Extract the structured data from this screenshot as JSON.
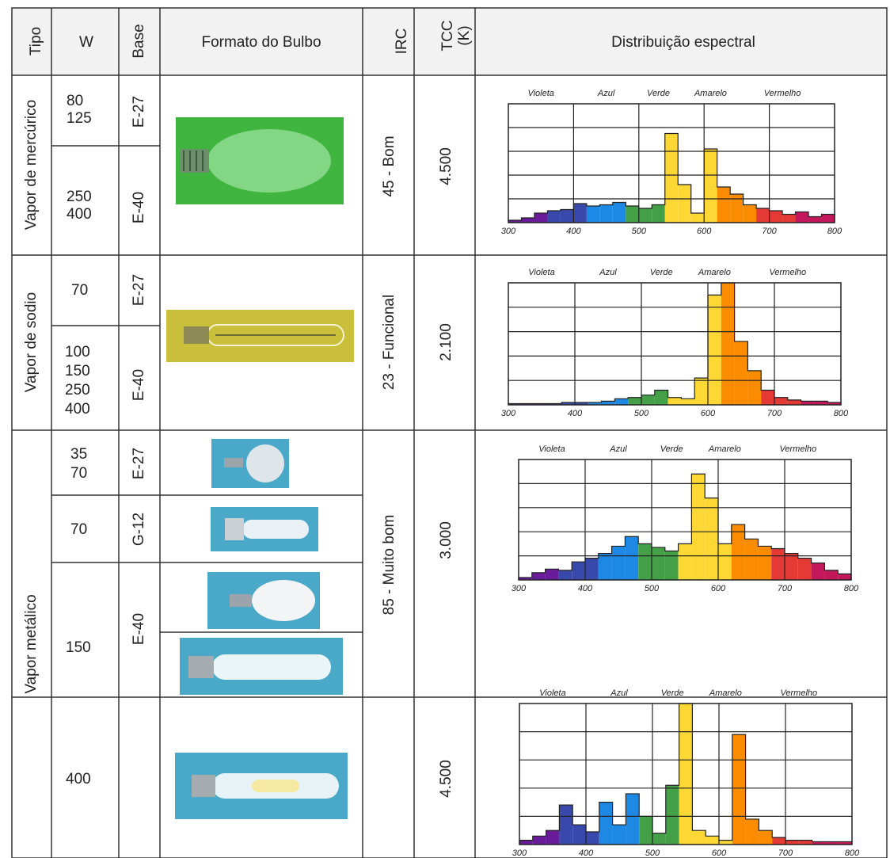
{
  "headers": {
    "tipo": "Tipo",
    "w": "W",
    "base": "Base",
    "formato": "Formato do Bulbo",
    "irc": "IRC",
    "tcc": "TCC (K)",
    "tcc_line1": "TCC",
    "tcc_line2": "(K)",
    "dist": "Distribuição espectral"
  },
  "colors": {
    "mercurio_photo_bg": "#3fb540",
    "sodio_photo_bg": "#c9bf3a",
    "metal_photo_bg": "#4aa8c8",
    "spectrum": [
      "#6a1b9a",
      "#3949ab",
      "#1e88e5",
      "#43a047",
      "#fdd835",
      "#fb8c00",
      "#e53935",
      "#c2185b"
    ]
  },
  "rows": [
    {
      "tipo": "Vapor de mercúrico",
      "irc": "45 - Bom",
      "tcc": "4.500",
      "lamps": [
        {
          "w1": "80",
          "w2": "125",
          "base": "E-27"
        },
        {
          "w1": "250",
          "w2": "400",
          "base": "E-40"
        }
      ]
    },
    {
      "tipo": "Vapor de sodio",
      "irc": "23 - Funcional",
      "tcc": "2.100",
      "lamps": [
        {
          "w1": "70",
          "base": "E-27"
        },
        {
          "w1": "100",
          "w2": "150",
          "w3": "250",
          "w4": "400",
          "base": "E-40"
        }
      ]
    },
    {
      "tipo": "Vapor metálico",
      "irc": "85 - Muito bom",
      "tcc": "3.000",
      "tcc2": "4.500",
      "lamps": [
        {
          "w1": "35",
          "w2": "70",
          "base": "E-27"
        },
        {
          "w1": "70",
          "base": "G-12"
        },
        {
          "w1": "150",
          "base": "E-40"
        },
        {
          "w1": "400",
          "base": ""
        }
      ]
    }
  ],
  "chart_data": [
    {
      "type": "area",
      "bands": [
        "Violeta",
        "Azul",
        "Verde",
        "Amarelo",
        "Vermelho"
      ],
      "xticks": [
        "300",
        "400",
        "500",
        "600",
        "700",
        "800"
      ],
      "xlim": [
        300,
        800
      ],
      "ylim": [
        0,
        100
      ],
      "grid": true,
      "x": [
        300,
        320,
        340,
        360,
        380,
        400,
        420,
        440,
        460,
        480,
        500,
        520,
        540,
        560,
        580,
        600,
        620,
        640,
        660,
        680,
        700,
        720,
        740,
        760,
        780,
        800
      ],
      "y": [
        2,
        4,
        8,
        10,
        11,
        16,
        14,
        15,
        17,
        14,
        12,
        15,
        75,
        32,
        8,
        62,
        30,
        24,
        15,
        12,
        10,
        7,
        9,
        5,
        7,
        4
      ]
    },
    {
      "type": "area",
      "bands": [
        "Violeta",
        "Azul",
        "Verde",
        "Amarelo",
        "Vermelho"
      ],
      "xticks": [
        "300",
        "400",
        "500",
        "600",
        "700",
        "800"
      ],
      "xlim": [
        300,
        800
      ],
      "ylim": [
        0,
        100
      ],
      "grid": true,
      "x": [
        300,
        320,
        340,
        360,
        380,
        400,
        420,
        440,
        460,
        480,
        500,
        520,
        540,
        560,
        580,
        600,
        620,
        640,
        660,
        680,
        700,
        720,
        740,
        760,
        780,
        800
      ],
      "y": [
        1,
        1,
        1,
        1,
        2,
        2,
        2,
        3,
        5,
        6,
        8,
        12,
        6,
        5,
        22,
        90,
        100,
        52,
        28,
        12,
        6,
        4,
        3,
        3,
        2,
        6
      ]
    },
    {
      "type": "area",
      "bands": [
        "Violeta",
        "Azul",
        "Verde",
        "Amarelo",
        "Vermelho"
      ],
      "xticks": [
        "300",
        "400",
        "500",
        "600",
        "700",
        "800"
      ],
      "xlim": [
        300,
        800
      ],
      "ylim": [
        0,
        100
      ],
      "grid": true,
      "x": [
        300,
        320,
        340,
        360,
        380,
        400,
        420,
        440,
        460,
        480,
        500,
        520,
        540,
        560,
        580,
        600,
        620,
        640,
        660,
        680,
        700,
        720,
        740,
        760,
        780,
        800
      ],
      "y": [
        2,
        6,
        9,
        8,
        15,
        18,
        22,
        28,
        36,
        30,
        27,
        24,
        30,
        88,
        68,
        30,
        46,
        34,
        28,
        26,
        22,
        18,
        14,
        8,
        5,
        3
      ]
    },
    {
      "type": "area",
      "bands": [
        "Violeta",
        "Azul",
        "Verde",
        "Amarelo",
        "Vermelho"
      ],
      "xticks": [
        "300",
        "400",
        "500",
        "600",
        "700",
        "800"
      ],
      "xlim": [
        300,
        800
      ],
      "ylim": [
        0,
        100
      ],
      "grid": true,
      "x": [
        300,
        320,
        340,
        360,
        380,
        400,
        420,
        440,
        460,
        480,
        500,
        520,
        540,
        560,
        580,
        600,
        620,
        640,
        660,
        680,
        700,
        720,
        740,
        760,
        780,
        800
      ],
      "y": [
        3,
        6,
        10,
        28,
        14,
        9,
        30,
        14,
        36,
        20,
        8,
        42,
        100,
        10,
        6,
        3,
        78,
        18,
        10,
        5,
        3,
        3,
        2,
        2,
        2,
        2
      ]
    }
  ]
}
